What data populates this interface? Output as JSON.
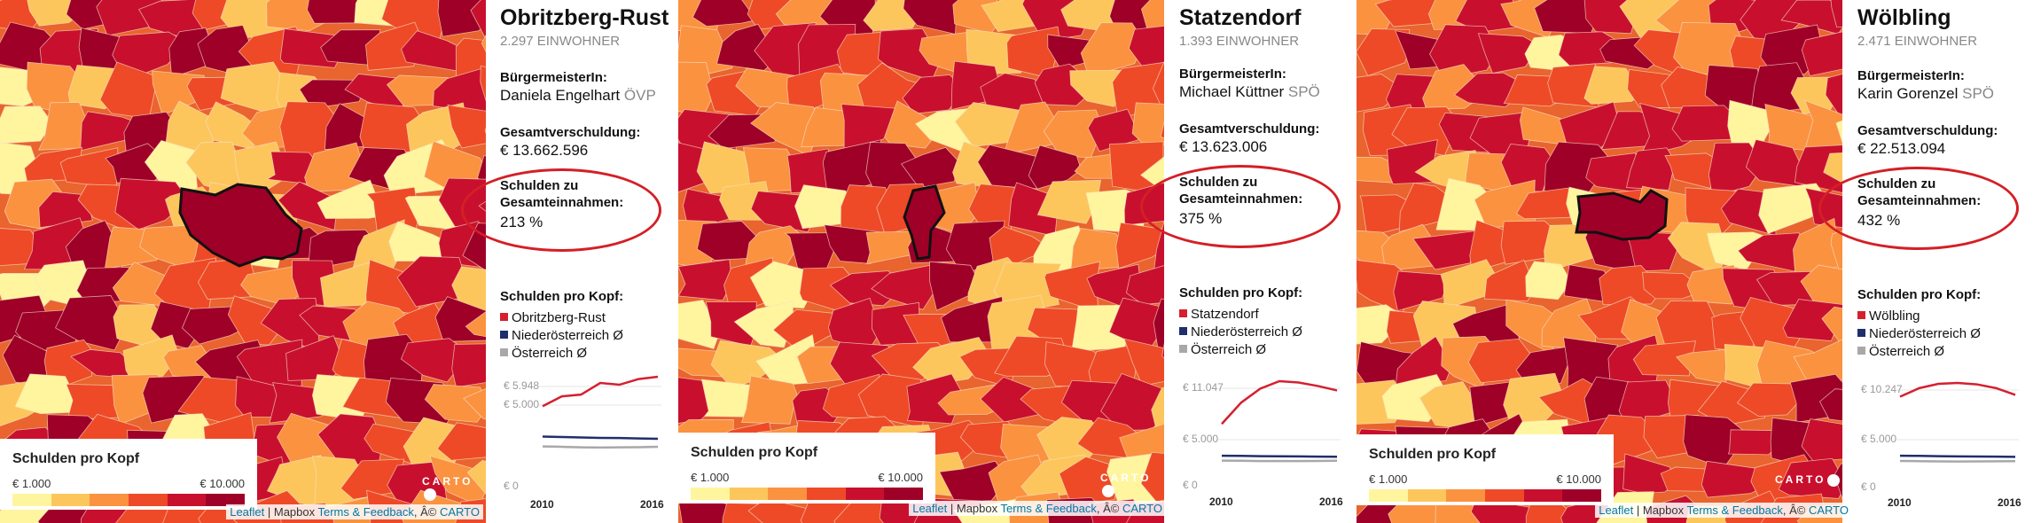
{
  "legend": {
    "title": "Schulden pro Kopf",
    "min": "€ 1.000",
    "max": "€ 10.000",
    "colors": [
      "#fff59e",
      "#fdc65c",
      "#fb9240",
      "#ee4a27",
      "#c8102e",
      "#9e0028"
    ]
  },
  "attribution": {
    "leaflet": "Leaflet",
    "sep1": " | Mapbox ",
    "terms": "Terms & Feedback",
    "sep2": ", Â© ",
    "carto": "CARTO"
  },
  "carto_logo": "CARTO",
  "colors": {
    "municipality": "#d42030",
    "nieder": "#1f2f6b",
    "oesterreich": "#a8a8a8",
    "ring": "#d41f26"
  },
  "panels": [
    {
      "name": "Obritzberg-Rust",
      "population": "2.297 EINWOHNER",
      "mayor_label": "BürgermeisterIn:",
      "mayor": "Daniela Engelhart",
      "party": "ÖVP",
      "debt_label": "Gesamtverschuldung:",
      "debt": "€ 13.662.596",
      "ratio_label1": "Schulden zu",
      "ratio_label2": "Gesamteinnahmen:",
      "ratio": "213 %",
      "chart_title": "Schulden pro Kopf:",
      "legend_items": [
        "Obritzberg-Rust",
        "Niederösterreich Ø",
        "Österreich Ø"
      ],
      "chart_data": {
        "type": "line",
        "x": [
          2010,
          2011,
          2012,
          2013,
          2014,
          2015,
          2016
        ],
        "ticks_y": [
          "€ 5.948",
          "€ 5.000",
          "€ 0"
        ],
        "ticks_x": [
          "2010",
          "2016"
        ],
        "ylim": [
          0,
          5948
        ],
        "series": [
          {
            "name": "Obritzberg-Rust",
            "values": [
              4300,
              4850,
              4950,
              5600,
              5500,
              5820,
              5948
            ]
          },
          {
            "name": "Niederösterreich Ø",
            "values": [
              2600,
              2580,
              2550,
              2530,
              2520,
              2500,
              2480
            ]
          },
          {
            "name": "Österreich Ø",
            "values": [
              2050,
              2030,
              2000,
              1990,
              2000,
              2010,
              2030
            ]
          }
        ]
      }
    },
    {
      "name": "Statzendorf",
      "population": "1.393 EINWOHNER",
      "mayor_label": "BürgermeisterIn:",
      "mayor": "Michael Küttner",
      "party": "SPÖ",
      "debt_label": "Gesamtverschuldung:",
      "debt": "€ 13.623.006",
      "ratio_label1": "Schulden zu",
      "ratio_label2": "Gesamteinnahmen:",
      "ratio": "375 %",
      "chart_title": "Schulden pro Kopf:",
      "legend_items": [
        "Statzendorf",
        "Niederösterreich Ø",
        "Österreich Ø"
      ],
      "chart_data": {
        "type": "line",
        "x": [
          2010,
          2011,
          2012,
          2013,
          2014,
          2015,
          2016
        ],
        "ticks_y": [
          "€ 11.047",
          "€ 5.000",
          "€ 0"
        ],
        "ticks_x": [
          "2010",
          "2016"
        ],
        "ylim": [
          0,
          11047
        ],
        "series": [
          {
            "name": "Statzendorf",
            "values": [
              6200,
              8600,
              10200,
              11047,
              10900,
              10500,
              10000
            ]
          },
          {
            "name": "Niederösterreich Ø",
            "values": [
              2600,
              2580,
              2550,
              2530,
              2520,
              2500,
              2480
            ]
          },
          {
            "name": "Österreich Ø",
            "values": [
              2050,
              2030,
              2000,
              1990,
              2000,
              2010,
              2030
            ]
          }
        ]
      }
    },
    {
      "name": "Wölbling",
      "population": "2.471 EINWOHNER",
      "mayor_label": "BürgermeisterIn:",
      "mayor": "Karin Gorenzel",
      "party": "SPÖ",
      "debt_label": "Gesamtverschuldung:",
      "debt": "€ 22.513.094",
      "ratio_label1": "Schulden zu",
      "ratio_label2": "Gesamteinnahmen:",
      "ratio": "432 %",
      "chart_title": "Schulden pro Kopf:",
      "legend_items": [
        "Wölbling",
        "Niederösterreich Ø",
        "Österreich Ø"
      ],
      "chart_data": {
        "type": "line",
        "x": [
          2010,
          2011,
          2012,
          2013,
          2014,
          2015,
          2016
        ],
        "ticks_y": [
          "€ 10.247",
          "€ 5.000",
          "€ 0"
        ],
        "ticks_x": [
          "2010",
          "2016"
        ],
        "ylim": [
          0,
          10247
        ],
        "series": [
          {
            "name": "Wölbling",
            "values": [
              8800,
              9700,
              10150,
              10247,
              10100,
              9700,
              9000
            ]
          },
          {
            "name": "Niederösterreich Ø",
            "values": [
              2600,
              2580,
              2550,
              2530,
              2520,
              2500,
              2480
            ]
          },
          {
            "name": "Österreich Ø",
            "values": [
              2050,
              2030,
              2000,
              1990,
              2000,
              2010,
              2030
            ]
          }
        ]
      }
    }
  ]
}
